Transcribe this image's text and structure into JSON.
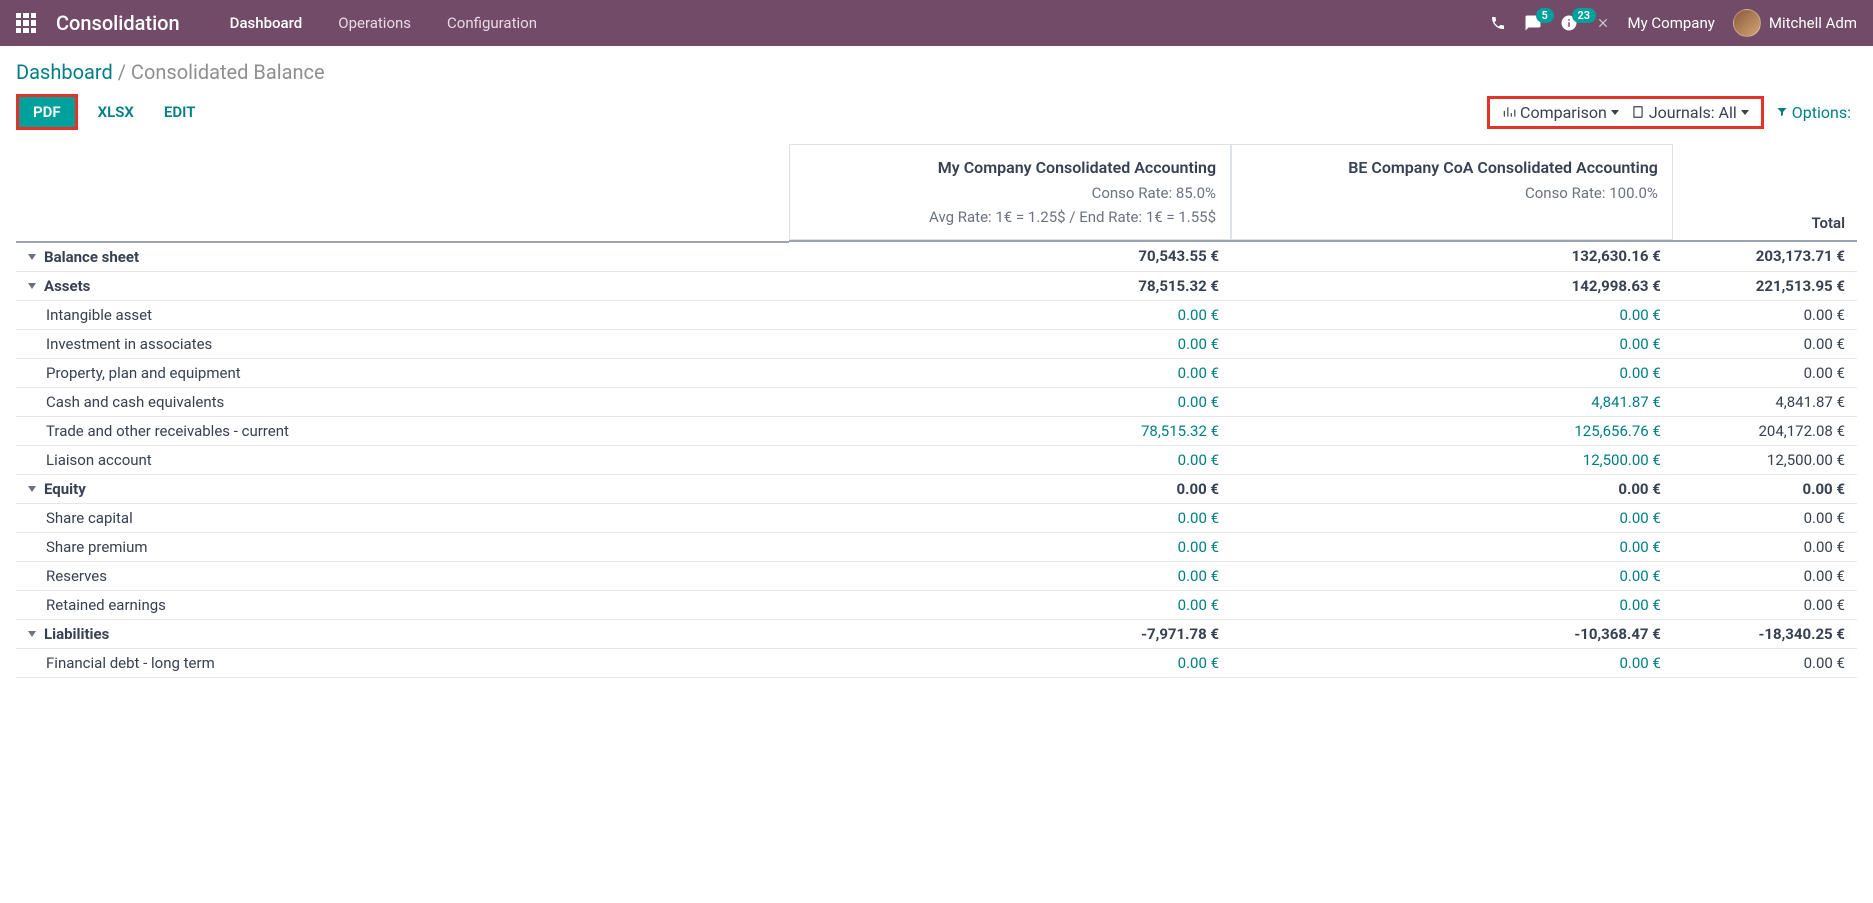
{
  "topbar": {
    "app_title": "Consolidation",
    "nav": [
      {
        "label": "Dashboard",
        "active": true
      },
      {
        "label": "Operations",
        "active": false
      },
      {
        "label": "Configuration",
        "active": false
      }
    ],
    "messages_badge": "5",
    "activities_badge": "23",
    "company": "My Company",
    "user": "Mitchell Adm"
  },
  "breadcrumbs": {
    "parent": "Dashboard",
    "sep": " / ",
    "current": "Consolidated Balance"
  },
  "buttons": {
    "pdf": "PDF",
    "xlsx": "XLSX",
    "edit": "EDIT"
  },
  "filters": {
    "comparison": "Comparison",
    "journals": "Journals: All",
    "options": "Options:"
  },
  "columns": [
    {
      "title": "My Company Consolidated Accounting",
      "rate": "Conso Rate: 85.0%",
      "fx": "Avg Rate: 1€ = 1.25$ / End Rate: 1€ = 1.55$"
    },
    {
      "title": "BE Company CoA Consolidated Accounting",
      "rate": "Conso Rate: 100.0%",
      "fx": ""
    }
  ],
  "total_header": "Total",
  "rows": [
    {
      "label": "Balance sheet",
      "level": 0,
      "bold": true,
      "caret": true,
      "c1": "70,543.55 €",
      "c2": "132,630.16 €",
      "total": "203,173.71 €",
      "link": false,
      "thick": true
    },
    {
      "label": "Assets",
      "level": 1,
      "bold": true,
      "caret": true,
      "c1": "78,515.32 €",
      "c2": "142,998.63 €",
      "total": "221,513.95 €",
      "link": false,
      "thick": false
    },
    {
      "label": "Intangible asset",
      "level": 2,
      "bold": false,
      "caret": false,
      "c1": "0.00 €",
      "c2": "0.00 €",
      "total": "0.00 €",
      "link": true,
      "thick": false
    },
    {
      "label": "Investment in associates",
      "level": 2,
      "bold": false,
      "caret": false,
      "c1": "0.00 €",
      "c2": "0.00 €",
      "total": "0.00 €",
      "link": true,
      "thick": false
    },
    {
      "label": "Property, plan and equipment",
      "level": 2,
      "bold": false,
      "caret": false,
      "c1": "0.00 €",
      "c2": "0.00 €",
      "total": "0.00 €",
      "link": true,
      "thick": false
    },
    {
      "label": "Cash and cash equivalents",
      "level": 2,
      "bold": false,
      "caret": false,
      "c1": "0.00 €",
      "c2": "4,841.87 €",
      "total": "4,841.87 €",
      "link": true,
      "thick": false
    },
    {
      "label": "Trade and other receivables - current",
      "level": 2,
      "bold": false,
      "caret": false,
      "c1": "78,515.32 €",
      "c2": "125,656.76 €",
      "total": "204,172.08 €",
      "link": true,
      "thick": false
    },
    {
      "label": "Liaison account",
      "level": 2,
      "bold": false,
      "caret": false,
      "c1": "0.00 €",
      "c2": "12,500.00 €",
      "total": "12,500.00 €",
      "link": true,
      "thick": false
    },
    {
      "label": "Equity",
      "level": 1,
      "bold": true,
      "caret": true,
      "c1": "0.00 €",
      "c2": "0.00 €",
      "total": "0.00 €",
      "link": false,
      "thick": false
    },
    {
      "label": "Share capital",
      "level": 2,
      "bold": false,
      "caret": false,
      "c1": "0.00 €",
      "c2": "0.00 €",
      "total": "0.00 €",
      "link": true,
      "thick": false
    },
    {
      "label": "Share premium",
      "level": 2,
      "bold": false,
      "caret": false,
      "c1": "0.00 €",
      "c2": "0.00 €",
      "total": "0.00 €",
      "link": true,
      "thick": false
    },
    {
      "label": "Reserves",
      "level": 2,
      "bold": false,
      "caret": false,
      "c1": "0.00 €",
      "c2": "0.00 €",
      "total": "0.00 €",
      "link": true,
      "thick": false
    },
    {
      "label": "Retained earnings",
      "level": 2,
      "bold": false,
      "caret": false,
      "c1": "0.00 €",
      "c2": "0.00 €",
      "total": "0.00 €",
      "link": true,
      "thick": false
    },
    {
      "label": "Liabilities",
      "level": 1,
      "bold": true,
      "caret": true,
      "c1": "-7,971.78 €",
      "c2": "-10,368.47 €",
      "total": "-18,340.25 €",
      "link": false,
      "thick": false
    },
    {
      "label": "Financial debt - long term",
      "level": 2,
      "bold": false,
      "caret": false,
      "c1": "0.00 €",
      "c2": "0.00 €",
      "total": "0.00 €",
      "link": true,
      "thick": false
    }
  ]
}
